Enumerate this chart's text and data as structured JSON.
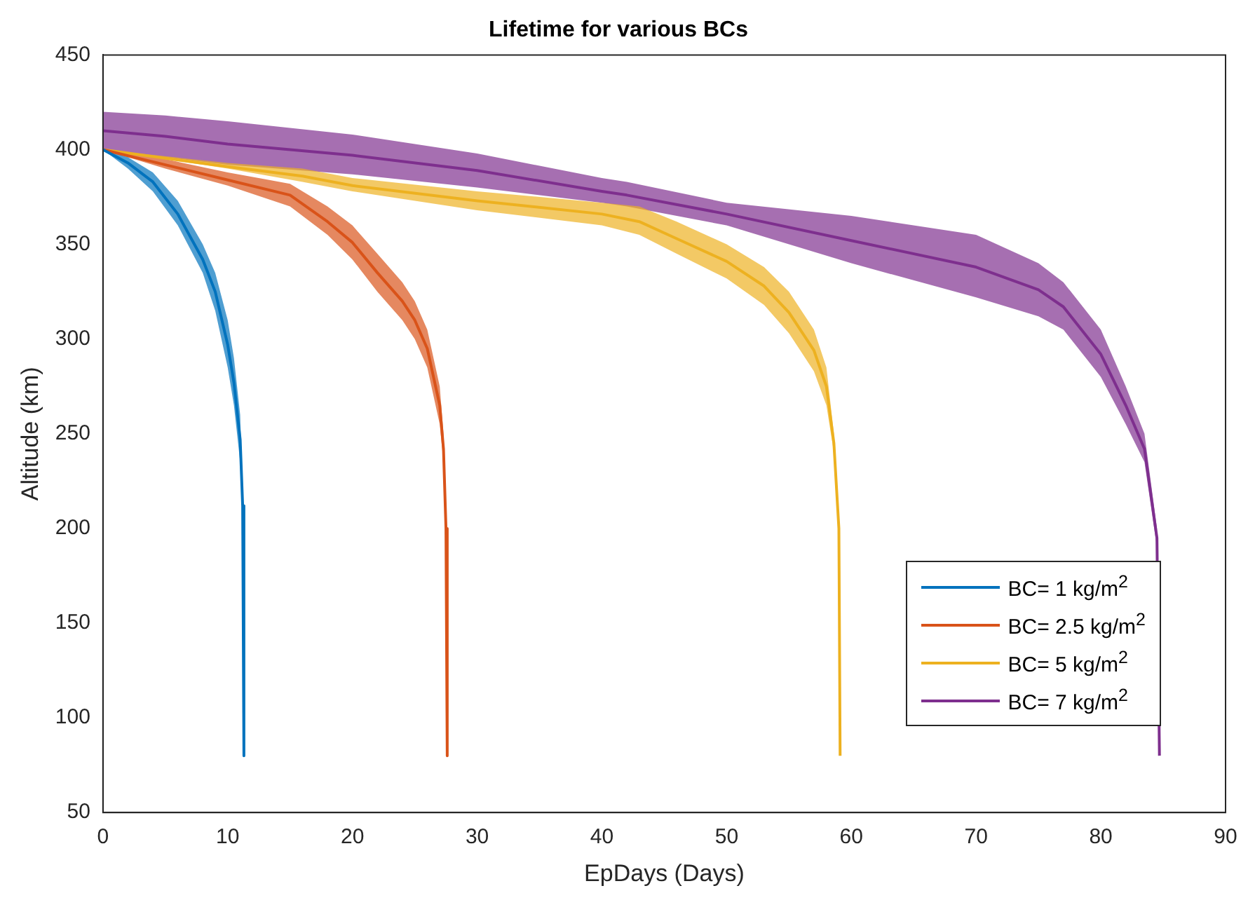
{
  "chart_data": {
    "type": "line",
    "title": "Lifetime for various BCs",
    "xlabel": "EpDays (Days)",
    "ylabel": "Altitude (km)",
    "xlim": [
      0,
      90
    ],
    "xticks": [
      0,
      10,
      20,
      30,
      40,
      50,
      60,
      70,
      80,
      90
    ],
    "ylim": [
      50,
      450
    ],
    "yticks": [
      50,
      100,
      150,
      200,
      250,
      300,
      350,
      400,
      450
    ],
    "grid": false,
    "legend": "bottom right",
    "marker": "none",
    "line_style": "solid",
    "series": [
      {
        "name": "BC= 1 kg/m$^{2}$",
        "color": "#0072bd",
        "x": [
          0,
          2,
          4,
          6,
          8,
          9,
          10,
          10.5,
          11,
          11.2,
          11.3
        ],
        "values": [
          400,
          393,
          383,
          366,
          342,
          325,
          297,
          277,
          247,
          212,
          80
        ],
        "lower": [
          400,
          390,
          378,
          360,
          335,
          315,
          285,
          265,
          235,
          210,
          80
        ],
        "upper": [
          400,
          396,
          388,
          373,
          350,
          335,
          310,
          290,
          260,
          215,
          80
        ]
      },
      {
        "name": "BC= 2.5 kg/m$^{2}$",
        "color": "#d95319",
        "x": [
          0,
          5,
          10,
          15,
          18,
          20,
          22,
          24,
          25,
          26,
          27,
          27.3,
          27.5,
          27.6
        ],
        "values": [
          400,
          392,
          384,
          376,
          362,
          351,
          335,
          320,
          310,
          295,
          265,
          242,
          200,
          80
        ],
        "lower": [
          400,
          390,
          381,
          370,
          355,
          342,
          325,
          310,
          300,
          285,
          255,
          235,
          200,
          80
        ],
        "upper": [
          400,
          395,
          388,
          382,
          370,
          360,
          345,
          330,
          320,
          305,
          275,
          250,
          200,
          80
        ]
      },
      {
        "name": "BC= 5 kg/m$^{2}$",
        "color": "#edb120",
        "x": [
          0,
          10,
          16,
          20,
          30,
          40,
          43,
          46,
          50,
          53,
          55,
          57,
          58,
          58.6,
          59,
          59.1
        ],
        "values": [
          400,
          391,
          386,
          381,
          373,
          366,
          362,
          353,
          341,
          328,
          314,
          294,
          275,
          245,
          200,
          80
        ],
        "lower": [
          400,
          390,
          383,
          378,
          368,
          360,
          355,
          345,
          332,
          318,
          303,
          283,
          265,
          240,
          200,
          80
        ],
        "upper": [
          400,
          393,
          390,
          385,
          378,
          372,
          370,
          362,
          350,
          338,
          325,
          305,
          285,
          250,
          200,
          80
        ]
      },
      {
        "name": "BC= 7 kg/m$^{2}$",
        "color": "#7e2f8e",
        "x": [
          0,
          5,
          10,
          20,
          30,
          40,
          42,
          50,
          60,
          70,
          75,
          77,
          80,
          82,
          83.5,
          84.5,
          84.7
        ],
        "values": [
          410,
          407,
          403,
          397,
          389,
          378,
          376,
          366,
          352,
          338,
          326,
          317,
          292,
          265,
          242,
          195,
          80
        ],
        "lower": [
          400,
          396,
          392,
          387,
          380,
          372,
          370,
          360,
          340,
          322,
          312,
          305,
          280,
          255,
          235,
          190,
          80
        ],
        "upper": [
          420,
          418,
          415,
          408,
          398,
          385,
          383,
          372,
          365,
          355,
          340,
          330,
          305,
          275,
          250,
          200,
          80
        ]
      }
    ]
  }
}
